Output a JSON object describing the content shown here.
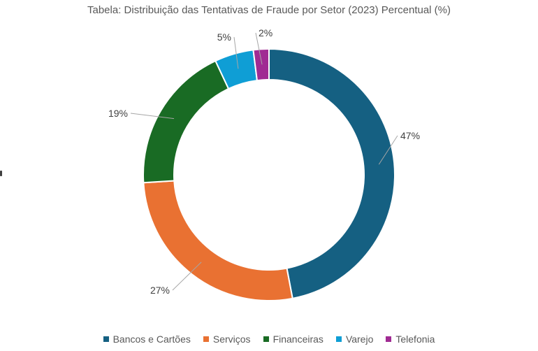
{
  "chart_data": {
    "type": "pie",
    "style": "donut",
    "title": "Tabela: Distribuição das Tentativas de Fraude por Setor (2023) Percentual (%)",
    "categories": [
      "Bancos e Cartões",
      "Serviços",
      "Financeiras",
      "Varejo",
      "Telefonia"
    ],
    "values": [
      47,
      27,
      19,
      5,
      2
    ],
    "labels": [
      "47%",
      "27%",
      "19%",
      "5%",
      "2%"
    ],
    "colors": [
      "#156082",
      "#E97132",
      "#196B24",
      "#0F9ED5",
      "#A02B93"
    ],
    "legend_position": "bottom"
  }
}
